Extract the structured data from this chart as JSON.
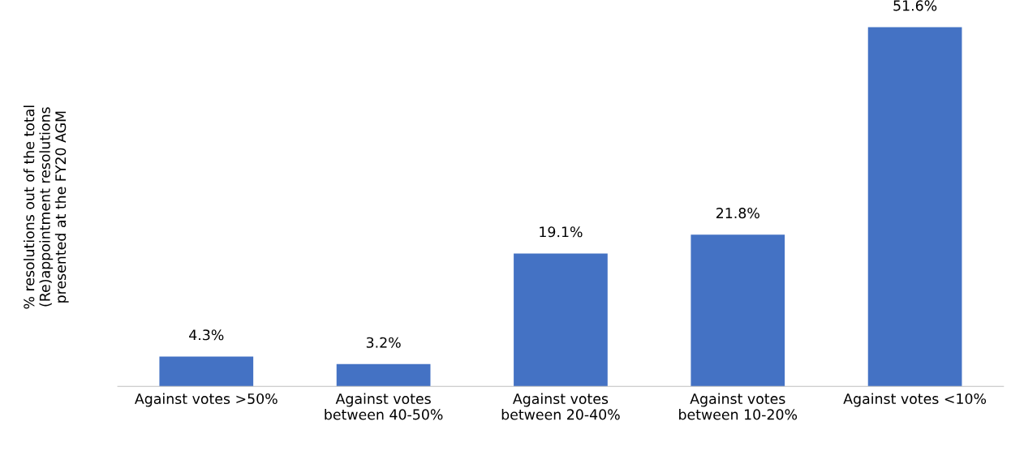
{
  "chart_data": {
    "type": "bar",
    "ylabel": "% resolutions out of the total\n(Re)appointment resolutions\npresented at the FY20 AGM",
    "categories": [
      "Against votes >50%",
      "Against votes\nbetween 40-50%",
      "Against votes\nbetween 20-40%",
      "Against votes\nbetween 10-20%",
      "Against votes <10%"
    ],
    "values": [
      4.3,
      3.2,
      19.1,
      21.8,
      51.6
    ],
    "value_labels": [
      "4.3%",
      "3.2%",
      "19.1%",
      "21.8%",
      "51.6%"
    ],
    "color": "#4472c4",
    "grid": false,
    "legend": false
  }
}
